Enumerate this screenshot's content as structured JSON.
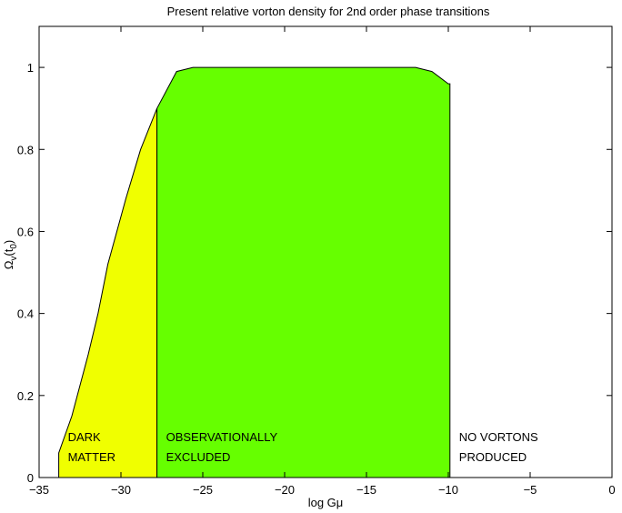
{
  "chart_data": {
    "type": "area",
    "title": "Present relative vorton density for 2nd order phase transitions",
    "xlabel": "log Gμ",
    "ylabel": "Ω",
    "ylabel_sub": "v",
    "ylabel_arg": "(t",
    "ylabel_arg_sub": "0",
    "ylabel_close": ")",
    "xlim": [
      -35,
      0
    ],
    "ylim": [
      0,
      1.1
    ],
    "xticks": [
      -35,
      -30,
      -25,
      -20,
      -15,
      -10,
      -5,
      0
    ],
    "xtick_labels": [
      "−35",
      "−30",
      "−25",
      "−20",
      "−15",
      "−10",
      "−5",
      "0"
    ],
    "yticks": [
      0,
      0.2,
      0.4,
      0.6,
      0.8,
      1
    ],
    "ytick_labels": [
      "0",
      "0.2",
      "0.4",
      "0.6",
      "0.8",
      "1"
    ],
    "grid": false,
    "curve": {
      "x": [
        -33.8,
        -33.0,
        -32.0,
        -31.4,
        -30.8,
        -29.7,
        -28.8,
        -27.8,
        -26.6,
        -25.6,
        -25.0,
        -20.0,
        -15.0,
        -12.0,
        -11.0,
        -10.0,
        -9.9
      ],
      "y": [
        0.06,
        0.15,
        0.3,
        0.4,
        0.52,
        0.68,
        0.8,
        0.9,
        0.99,
        1.0,
        1.0,
        1.0,
        1.0,
        1.0,
        0.99,
        0.96,
        0.96
      ]
    },
    "regions": [
      {
        "x_from": -33.8,
        "x_to": -27.8,
        "color": "#f0ff00",
        "label_lines": [
          "DARK",
          "MATTER"
        ]
      },
      {
        "x_from": -27.8,
        "x_to": -9.9,
        "color": "#66ff00",
        "label_lines": [
          "OBSERVATIONALLY",
          "EXCLUDED"
        ]
      },
      {
        "x_from": -9.9,
        "x_to": 0,
        "color": "#ffffff",
        "label_lines": [
          "NO VORTONS",
          "PRODUCED"
        ]
      }
    ]
  }
}
